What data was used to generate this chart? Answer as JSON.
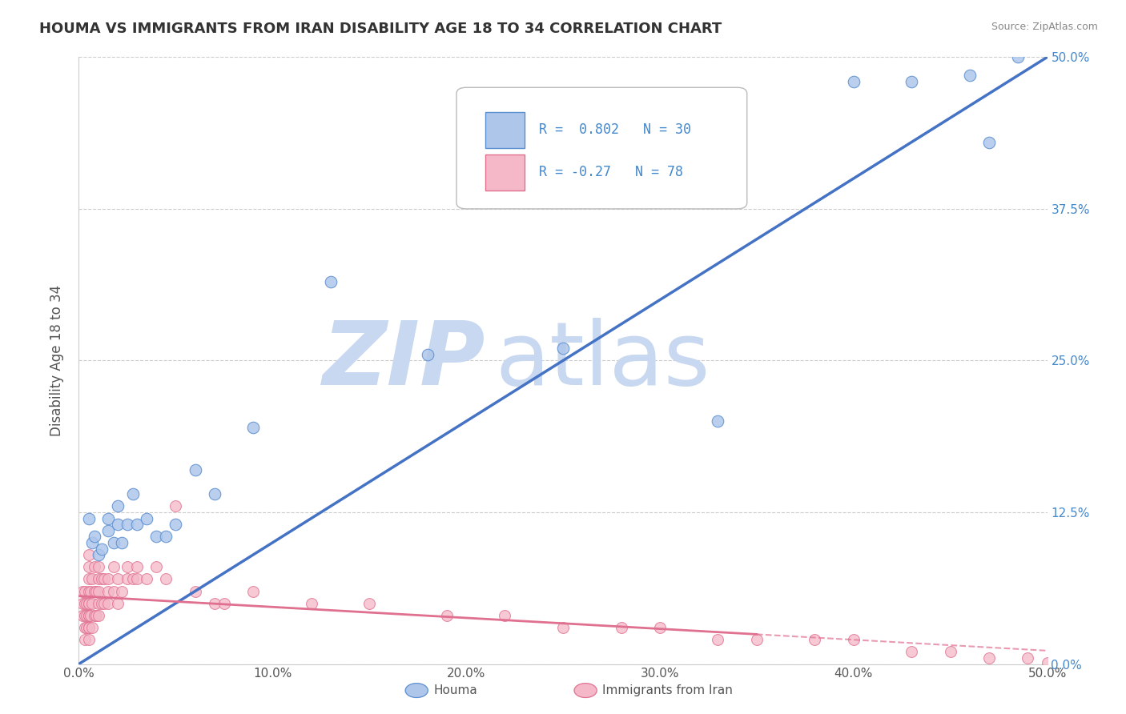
{
  "title": "HOUMA VS IMMIGRANTS FROM IRAN DISABILITY AGE 18 TO 34 CORRELATION CHART",
  "source": "Source: ZipAtlas.com",
  "ylabel": "Disability Age 18 to 34",
  "xlim": [
    0.0,
    0.5
  ],
  "ylim": [
    0.0,
    0.5
  ],
  "xticks": [
    0.0,
    0.1,
    0.2,
    0.3,
    0.4,
    0.5
  ],
  "yticks": [
    0.0,
    0.125,
    0.25,
    0.375,
    0.5
  ],
  "ytick_labels_right": [
    "0.0%",
    "12.5%",
    "25.0%",
    "37.5%",
    "50.0%"
  ],
  "xtick_labels": [
    "0.0%",
    "10.0%",
    "20.0%",
    "30.0%",
    "40.0%",
    "50.0%"
  ],
  "houma_R": 0.802,
  "houma_N": 30,
  "iran_R": -0.27,
  "iran_N": 78,
  "houma_color": "#aec6ea",
  "houma_edge_color": "#5b8ecf",
  "houma_line_color": "#4472c4",
  "iran_color": "#f4b8c8",
  "iran_edge_color": "#e07090",
  "iran_line_color": "#e07090",
  "watermark_zip_color": "#c8d8f0",
  "watermark_atlas_color": "#c8d8f0",
  "background_color": "#ffffff",
  "grid_color": "#cccccc",
  "houma_line_intercept": 0.0,
  "houma_line_slope": 1.0,
  "iran_line_intercept": 0.056,
  "iran_line_slope": -0.09,
  "houma_x": [
    0.005,
    0.007,
    0.008,
    0.01,
    0.012,
    0.015,
    0.015,
    0.018,
    0.02,
    0.02,
    0.022,
    0.025,
    0.028,
    0.03,
    0.035,
    0.04,
    0.045,
    0.05,
    0.06,
    0.07,
    0.09,
    0.13,
    0.18,
    0.25,
    0.33,
    0.4,
    0.43,
    0.46,
    0.47,
    0.485
  ],
  "houma_y": [
    0.12,
    0.1,
    0.105,
    0.09,
    0.095,
    0.12,
    0.11,
    0.1,
    0.115,
    0.13,
    0.1,
    0.115,
    0.14,
    0.115,
    0.12,
    0.105,
    0.105,
    0.115,
    0.16,
    0.14,
    0.195,
    0.315,
    0.255,
    0.26,
    0.2,
    0.48,
    0.48,
    0.485,
    0.43,
    0.5
  ],
  "iran_x": [
    0.002,
    0.002,
    0.002,
    0.003,
    0.003,
    0.003,
    0.003,
    0.003,
    0.004,
    0.004,
    0.004,
    0.005,
    0.005,
    0.005,
    0.005,
    0.005,
    0.005,
    0.005,
    0.005,
    0.005,
    0.005,
    0.005,
    0.006,
    0.006,
    0.007,
    0.007,
    0.007,
    0.008,
    0.008,
    0.008,
    0.009,
    0.009,
    0.01,
    0.01,
    0.01,
    0.01,
    0.01,
    0.012,
    0.012,
    0.013,
    0.013,
    0.015,
    0.015,
    0.015,
    0.018,
    0.018,
    0.02,
    0.02,
    0.022,
    0.025,
    0.025,
    0.028,
    0.03,
    0.03,
    0.035,
    0.04,
    0.045,
    0.05,
    0.06,
    0.07,
    0.075,
    0.09,
    0.12,
    0.15,
    0.19,
    0.22,
    0.25,
    0.28,
    0.3,
    0.33,
    0.35,
    0.38,
    0.4,
    0.43,
    0.45,
    0.47,
    0.49,
    0.5
  ],
  "iran_y": [
    0.04,
    0.05,
    0.06,
    0.02,
    0.03,
    0.04,
    0.05,
    0.06,
    0.03,
    0.04,
    0.05,
    0.02,
    0.03,
    0.04,
    0.05,
    0.06,
    0.07,
    0.08,
    0.09,
    0.03,
    0.04,
    0.05,
    0.04,
    0.06,
    0.03,
    0.05,
    0.07,
    0.04,
    0.06,
    0.08,
    0.04,
    0.06,
    0.04,
    0.05,
    0.06,
    0.07,
    0.08,
    0.05,
    0.07,
    0.05,
    0.07,
    0.05,
    0.06,
    0.07,
    0.06,
    0.08,
    0.05,
    0.07,
    0.06,
    0.07,
    0.08,
    0.07,
    0.07,
    0.08,
    0.07,
    0.08,
    0.07,
    0.13,
    0.06,
    0.05,
    0.05,
    0.06,
    0.05,
    0.05,
    0.04,
    0.04,
    0.03,
    0.03,
    0.03,
    0.02,
    0.02,
    0.02,
    0.02,
    0.01,
    0.01,
    0.005,
    0.005,
    0.001
  ]
}
